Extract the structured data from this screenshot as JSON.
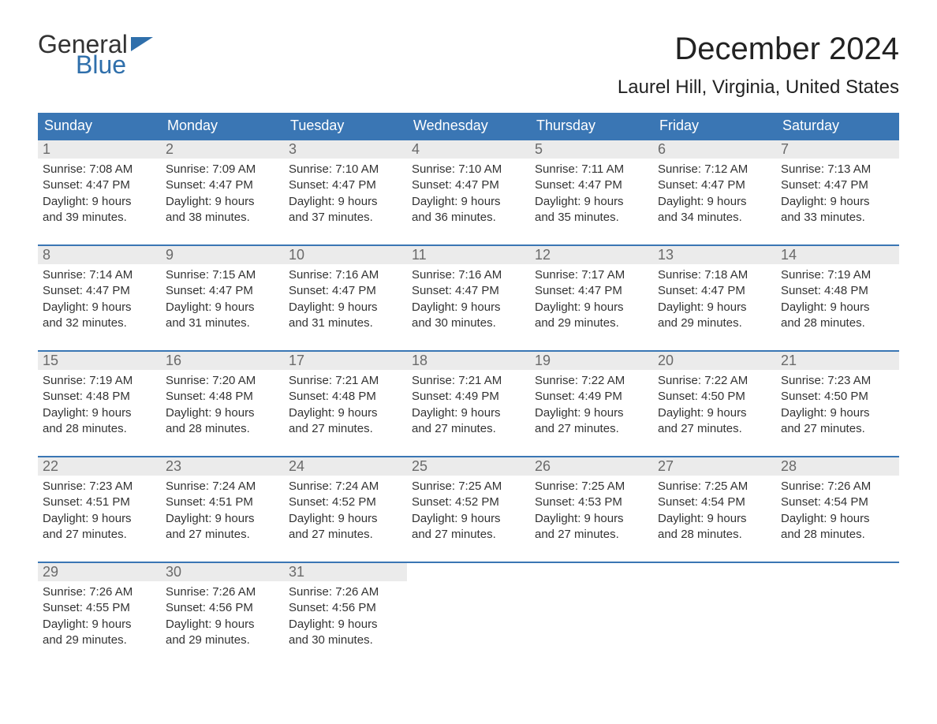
{
  "logo": {
    "word1": "General",
    "word2": "Blue",
    "flag_color": "#2f6fab"
  },
  "title": "December 2024",
  "location": "Laurel Hill, Virginia, United States",
  "colors": {
    "header_bg": "#3a76b4",
    "header_text": "#ffffff",
    "daynum_bg": "#ebebeb",
    "daynum_text": "#6a6a6a",
    "body_text": "#333333",
    "week_border": "#3a76b4"
  },
  "day_names": [
    "Sunday",
    "Monday",
    "Tuesday",
    "Wednesday",
    "Thursday",
    "Friday",
    "Saturday"
  ],
  "weeks": [
    [
      {
        "n": "1",
        "sunrise": "Sunrise: 7:08 AM",
        "sunset": "Sunset: 4:47 PM",
        "daylight1": "Daylight: 9 hours",
        "daylight2": "and 39 minutes."
      },
      {
        "n": "2",
        "sunrise": "Sunrise: 7:09 AM",
        "sunset": "Sunset: 4:47 PM",
        "daylight1": "Daylight: 9 hours",
        "daylight2": "and 38 minutes."
      },
      {
        "n": "3",
        "sunrise": "Sunrise: 7:10 AM",
        "sunset": "Sunset: 4:47 PM",
        "daylight1": "Daylight: 9 hours",
        "daylight2": "and 37 minutes."
      },
      {
        "n": "4",
        "sunrise": "Sunrise: 7:10 AM",
        "sunset": "Sunset: 4:47 PM",
        "daylight1": "Daylight: 9 hours",
        "daylight2": "and 36 minutes."
      },
      {
        "n": "5",
        "sunrise": "Sunrise: 7:11 AM",
        "sunset": "Sunset: 4:47 PM",
        "daylight1": "Daylight: 9 hours",
        "daylight2": "and 35 minutes."
      },
      {
        "n": "6",
        "sunrise": "Sunrise: 7:12 AM",
        "sunset": "Sunset: 4:47 PM",
        "daylight1": "Daylight: 9 hours",
        "daylight2": "and 34 minutes."
      },
      {
        "n": "7",
        "sunrise": "Sunrise: 7:13 AM",
        "sunset": "Sunset: 4:47 PM",
        "daylight1": "Daylight: 9 hours",
        "daylight2": "and 33 minutes."
      }
    ],
    [
      {
        "n": "8",
        "sunrise": "Sunrise: 7:14 AM",
        "sunset": "Sunset: 4:47 PM",
        "daylight1": "Daylight: 9 hours",
        "daylight2": "and 32 minutes."
      },
      {
        "n": "9",
        "sunrise": "Sunrise: 7:15 AM",
        "sunset": "Sunset: 4:47 PM",
        "daylight1": "Daylight: 9 hours",
        "daylight2": "and 31 minutes."
      },
      {
        "n": "10",
        "sunrise": "Sunrise: 7:16 AM",
        "sunset": "Sunset: 4:47 PM",
        "daylight1": "Daylight: 9 hours",
        "daylight2": "and 31 minutes."
      },
      {
        "n": "11",
        "sunrise": "Sunrise: 7:16 AM",
        "sunset": "Sunset: 4:47 PM",
        "daylight1": "Daylight: 9 hours",
        "daylight2": "and 30 minutes."
      },
      {
        "n": "12",
        "sunrise": "Sunrise: 7:17 AM",
        "sunset": "Sunset: 4:47 PM",
        "daylight1": "Daylight: 9 hours",
        "daylight2": "and 29 minutes."
      },
      {
        "n": "13",
        "sunrise": "Sunrise: 7:18 AM",
        "sunset": "Sunset: 4:47 PM",
        "daylight1": "Daylight: 9 hours",
        "daylight2": "and 29 minutes."
      },
      {
        "n": "14",
        "sunrise": "Sunrise: 7:19 AM",
        "sunset": "Sunset: 4:48 PM",
        "daylight1": "Daylight: 9 hours",
        "daylight2": "and 28 minutes."
      }
    ],
    [
      {
        "n": "15",
        "sunrise": "Sunrise: 7:19 AM",
        "sunset": "Sunset: 4:48 PM",
        "daylight1": "Daylight: 9 hours",
        "daylight2": "and 28 minutes."
      },
      {
        "n": "16",
        "sunrise": "Sunrise: 7:20 AM",
        "sunset": "Sunset: 4:48 PM",
        "daylight1": "Daylight: 9 hours",
        "daylight2": "and 28 minutes."
      },
      {
        "n": "17",
        "sunrise": "Sunrise: 7:21 AM",
        "sunset": "Sunset: 4:48 PM",
        "daylight1": "Daylight: 9 hours",
        "daylight2": "and 27 minutes."
      },
      {
        "n": "18",
        "sunrise": "Sunrise: 7:21 AM",
        "sunset": "Sunset: 4:49 PM",
        "daylight1": "Daylight: 9 hours",
        "daylight2": "and 27 minutes."
      },
      {
        "n": "19",
        "sunrise": "Sunrise: 7:22 AM",
        "sunset": "Sunset: 4:49 PM",
        "daylight1": "Daylight: 9 hours",
        "daylight2": "and 27 minutes."
      },
      {
        "n": "20",
        "sunrise": "Sunrise: 7:22 AM",
        "sunset": "Sunset: 4:50 PM",
        "daylight1": "Daylight: 9 hours",
        "daylight2": "and 27 minutes."
      },
      {
        "n": "21",
        "sunrise": "Sunrise: 7:23 AM",
        "sunset": "Sunset: 4:50 PM",
        "daylight1": "Daylight: 9 hours",
        "daylight2": "and 27 minutes."
      }
    ],
    [
      {
        "n": "22",
        "sunrise": "Sunrise: 7:23 AM",
        "sunset": "Sunset: 4:51 PM",
        "daylight1": "Daylight: 9 hours",
        "daylight2": "and 27 minutes."
      },
      {
        "n": "23",
        "sunrise": "Sunrise: 7:24 AM",
        "sunset": "Sunset: 4:51 PM",
        "daylight1": "Daylight: 9 hours",
        "daylight2": "and 27 minutes."
      },
      {
        "n": "24",
        "sunrise": "Sunrise: 7:24 AM",
        "sunset": "Sunset: 4:52 PM",
        "daylight1": "Daylight: 9 hours",
        "daylight2": "and 27 minutes."
      },
      {
        "n": "25",
        "sunrise": "Sunrise: 7:25 AM",
        "sunset": "Sunset: 4:52 PM",
        "daylight1": "Daylight: 9 hours",
        "daylight2": "and 27 minutes."
      },
      {
        "n": "26",
        "sunrise": "Sunrise: 7:25 AM",
        "sunset": "Sunset: 4:53 PM",
        "daylight1": "Daylight: 9 hours",
        "daylight2": "and 27 minutes."
      },
      {
        "n": "27",
        "sunrise": "Sunrise: 7:25 AM",
        "sunset": "Sunset: 4:54 PM",
        "daylight1": "Daylight: 9 hours",
        "daylight2": "and 28 minutes."
      },
      {
        "n": "28",
        "sunrise": "Sunrise: 7:26 AM",
        "sunset": "Sunset: 4:54 PM",
        "daylight1": "Daylight: 9 hours",
        "daylight2": "and 28 minutes."
      }
    ],
    [
      {
        "n": "29",
        "sunrise": "Sunrise: 7:26 AM",
        "sunset": "Sunset: 4:55 PM",
        "daylight1": "Daylight: 9 hours",
        "daylight2": "and 29 minutes."
      },
      {
        "n": "30",
        "sunrise": "Sunrise: 7:26 AM",
        "sunset": "Sunset: 4:56 PM",
        "daylight1": "Daylight: 9 hours",
        "daylight2": "and 29 minutes."
      },
      {
        "n": "31",
        "sunrise": "Sunrise: 7:26 AM",
        "sunset": "Sunset: 4:56 PM",
        "daylight1": "Daylight: 9 hours",
        "daylight2": "and 30 minutes."
      },
      {
        "empty": true
      },
      {
        "empty": true
      },
      {
        "empty": true
      },
      {
        "empty": true
      }
    ]
  ]
}
